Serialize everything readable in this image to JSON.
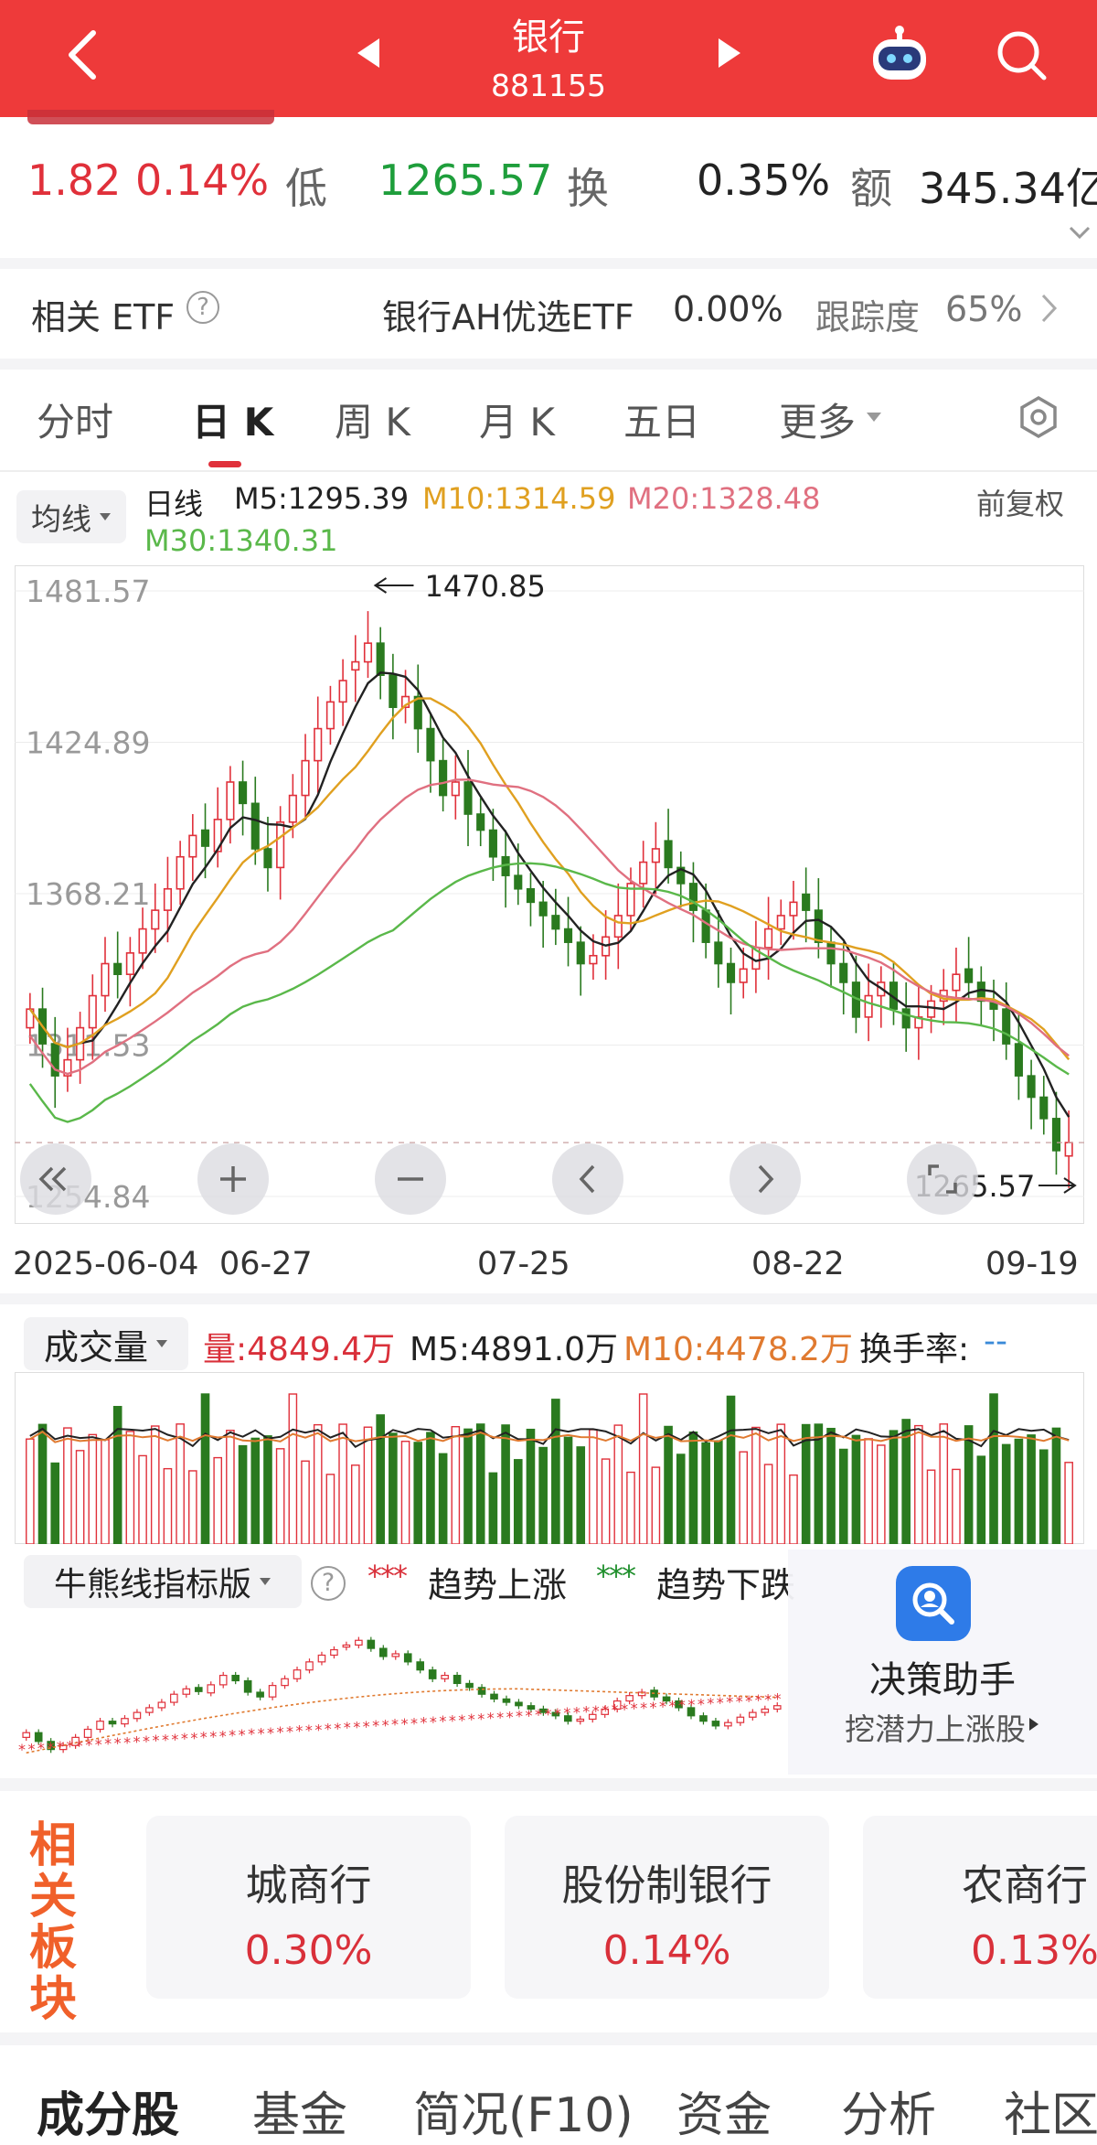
{
  "header": {
    "title": "银行",
    "code": "881155"
  },
  "quote": {
    "change": "1.82",
    "change_pct": "0.14%",
    "low_label": "低",
    "low_value": "1265.57",
    "turnover_label": "换",
    "turnover_value": "0.35%",
    "amount_label": "额",
    "amount_value": "345.34亿"
  },
  "etf": {
    "label": "相关 ETF",
    "name": "银行AH优选ETF",
    "change": "0.00%",
    "tracking_label": "跟踪度",
    "tracking_value": "65%"
  },
  "tabs": [
    "分时",
    "日 K",
    "周 K",
    "月 K",
    "五日",
    "更多"
  ],
  "active_tab": "日 K",
  "ma_legend": {
    "selector": "均线",
    "period": "日线",
    "m5": "M5:1295.39",
    "m10": "M10:1314.59",
    "m20": "M20:1328.48",
    "m30": "M30:1340.31",
    "adjust": "前复权"
  },
  "colors": {
    "header": "#ee3a3a",
    "up": "#e0303a",
    "down": "#2a7a1f",
    "m5": "#222222",
    "m10": "#e0a020",
    "m20": "#e07080",
    "m30": "#5ab84a"
  },
  "chart_data": [
    {
      "type": "candlestick",
      "y_tick_labels": [
        "1481.57",
        "1424.89",
        "1368.21",
        "1311.53",
        "1254.84"
      ],
      "ylim": [
        1254.84,
        1481.57
      ],
      "x_tick_labels": [
        "2025-06-04",
        "06-27",
        "07-25",
        "08-22",
        "09-19"
      ],
      "high_annotation": "1470.85",
      "low_annotation": "1265.57",
      "closes": [
        1325,
        1312,
        1300,
        1306,
        1318,
        1330,
        1342,
        1338,
        1346,
        1355,
        1362,
        1370,
        1382,
        1390,
        1386,
        1396,
        1410,
        1402,
        1385,
        1378,
        1395,
        1405,
        1418,
        1430,
        1440,
        1448,
        1455,
        1462,
        1450,
        1438,
        1442,
        1430,
        1418,
        1405,
        1410,
        1398,
        1392,
        1382,
        1375,
        1370,
        1365,
        1360,
        1355,
        1350,
        1342,
        1345,
        1352,
        1360,
        1372,
        1380,
        1385,
        1378,
        1372,
        1362,
        1350,
        1342,
        1335,
        1340,
        1348,
        1355,
        1360,
        1365,
        1362,
        1350,
        1342,
        1335,
        1322,
        1330,
        1335,
        1325,
        1318,
        1322,
        1328,
        1332,
        1338,
        1335,
        1328,
        1325,
        1312,
        1300,
        1292,
        1284,
        1272,
        1275
      ],
      "opens": [
        1318,
        1325,
        1312,
        1300,
        1306,
        1318,
        1330,
        1342,
        1338,
        1346,
        1355,
        1362,
        1370,
        1382,
        1392,
        1384,
        1396,
        1410,
        1402,
        1385,
        1378,
        1395,
        1405,
        1418,
        1430,
        1440,
        1452,
        1455,
        1462,
        1450,
        1438,
        1442,
        1430,
        1418,
        1405,
        1410,
        1398,
        1392,
        1382,
        1375,
        1370,
        1365,
        1360,
        1355,
        1350,
        1342,
        1345,
        1352,
        1360,
        1372,
        1380,
        1388,
        1378,
        1372,
        1362,
        1350,
        1342,
        1335,
        1340,
        1348,
        1355,
        1360,
        1368,
        1362,
        1350,
        1342,
        1335,
        1322,
        1330,
        1335,
        1325,
        1318,
        1322,
        1328,
        1332,
        1340,
        1335,
        1328,
        1325,
        1312,
        1300,
        1292,
        1284,
        1270
      ]
    },
    {
      "type": "bar",
      "title": "成交量",
      "volume_label": "量:4849.4万",
      "m5_label": "M5:4891.0万",
      "m10_label": "M10:4478.2万",
      "turnover_label": "换手率:",
      "turnover_value": "--"
    },
    {
      "type": "line",
      "title": "牛熊线指标版",
      "legend_up": "趋势上涨",
      "legend_down": "趋势下跌"
    }
  ],
  "assistant": {
    "title": "决策助手",
    "subtitle": "挖潜力上涨股"
  },
  "chart_controls": {
    "icons": [
      "rewind-icon",
      "zoom-in-icon",
      "zoom-out-icon",
      "prev-icon",
      "next-icon",
      "fullscreen-icon"
    ]
  },
  "sectors": {
    "title": "相关板块",
    "items": [
      {
        "name": "城商行",
        "pct": "0.30%"
      },
      {
        "name": "股份制银行",
        "pct": "0.14%"
      },
      {
        "name": "农商行",
        "pct": "0.13%"
      }
    ]
  },
  "bottom_tabs": [
    "成分股",
    "基金",
    "简况(F10)",
    "资金",
    "分析",
    "社区"
  ]
}
